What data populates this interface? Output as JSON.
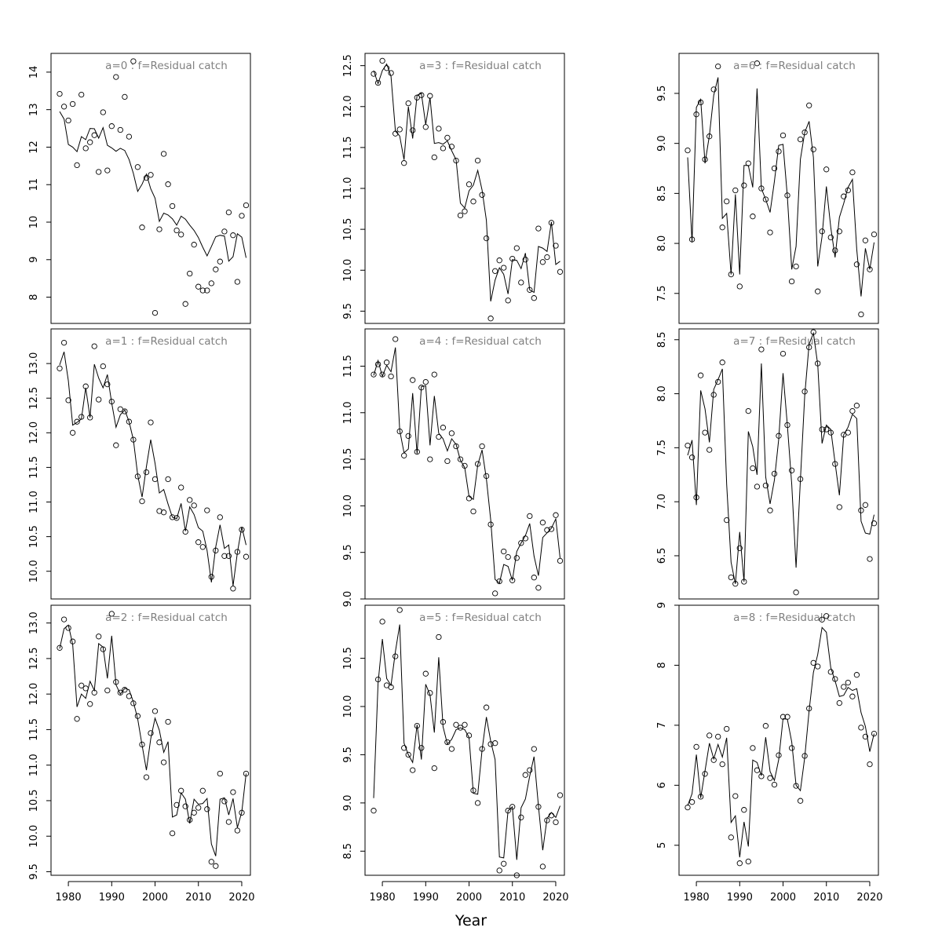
{
  "figure": {
    "xlabel": "Year"
  },
  "chart_data": [
    {
      "type": "scatter",
      "title": "a=0 : f=Residual catch",
      "x_start": 1978,
      "xlim": [
        1976,
        2022
      ],
      "ylim": [
        7.3,
        14.5
      ],
      "yticks": [
        8,
        9,
        10,
        11,
        12,
        13,
        14
      ],
      "series": [
        {
          "type": "points",
          "values": [
            13.42,
            13.08,
            12.71,
            13.15,
            11.52,
            13.4,
            11.97,
            12.13,
            12.32,
            11.34,
            12.93,
            11.38,
            12.56,
            13.87,
            12.46,
            13.34,
            12.28,
            14.29,
            11.47,
            9.86,
            11.18,
            11.26,
            7.58,
            9.81,
            11.82,
            11.01,
            10.43,
            9.78,
            9.67,
            7.82,
            8.63,
            9.4,
            8.28,
            8.18,
            8.18,
            8.37,
            8.74,
            8.95,
            9.75,
            10.26,
            9.65,
            8.41,
            10.17,
            10.45
          ]
        },
        {
          "type": "line",
          "values": [
            12.95,
            12.75,
            12.07,
            12.0,
            11.88,
            12.28,
            12.2,
            12.5,
            12.49,
            12.24,
            12.52,
            12.05,
            11.98,
            11.89,
            11.97,
            11.91,
            11.67,
            11.3,
            10.82,
            11.01,
            11.28,
            10.89,
            10.64,
            10.02,
            10.24,
            10.19,
            10.09,
            9.92,
            10.16,
            10.08,
            9.92,
            9.78,
            9.59,
            9.33,
            9.1,
            9.35,
            9.61,
            9.65,
            9.63,
            8.96,
            9.08,
            9.69,
            9.6,
            9.05
          ]
        }
      ]
    },
    {
      "type": "scatter",
      "title": "a=1 : f=Residual catch",
      "x_start": 1978,
      "xlim": [
        1976,
        2022
      ],
      "ylim": [
        9.6,
        13.5
      ],
      "yticks": [
        10.0,
        10.5,
        11.0,
        11.5,
        12.0,
        12.5,
        13.0
      ],
      "series": [
        {
          "type": "points",
          "values": [
            12.93,
            13.3,
            12.47,
            12.0,
            12.16,
            12.23,
            12.67,
            12.22,
            13.25,
            12.48,
            12.96,
            12.7,
            12.45,
            11.82,
            12.34,
            12.31,
            12.16,
            11.9,
            11.37,
            11.01,
            11.43,
            12.15,
            11.33,
            10.87,
            10.85,
            11.33,
            10.78,
            10.77,
            11.21,
            10.57,
            11.03,
            10.95,
            10.42,
            10.35,
            10.88,
            9.92,
            10.3,
            10.78,
            10.22,
            10.22,
            9.75,
            10.28,
            10.6,
            10.21
          ]
        },
        {
          "type": "line",
          "values": [
            12.98,
            13.17,
            12.75,
            12.11,
            12.15,
            12.2,
            12.65,
            12.22,
            12.99,
            12.79,
            12.65,
            12.84,
            12.43,
            12.08,
            12.26,
            12.33,
            12.16,
            11.9,
            11.39,
            11.07,
            11.51,
            11.9,
            11.56,
            11.13,
            11.18,
            10.97,
            10.78,
            10.76,
            10.98,
            10.58,
            10.93,
            10.82,
            10.63,
            10.58,
            10.3,
            9.84,
            10.35,
            10.67,
            10.33,
            10.38,
            9.79,
            10.27,
            10.64,
            10.38
          ]
        }
      ]
    },
    {
      "type": "scatter",
      "title": "a=2 : f=Residual catch",
      "x_start": 1978,
      "xlim": [
        1976,
        2022
      ],
      "ylim": [
        9.45,
        13.25
      ],
      "yticks": [
        9.5,
        10.0,
        10.5,
        11.0,
        11.5,
        12.0,
        12.5,
        13.0
      ],
      "series": [
        {
          "type": "points",
          "values": [
            12.65,
            13.05,
            12.93,
            12.74,
            11.65,
            12.12,
            12.08,
            11.86,
            12.02,
            12.81,
            12.63,
            12.05,
            13.13,
            12.17,
            12.02,
            12.06,
            11.97,
            11.87,
            11.69,
            11.29,
            10.83,
            11.45,
            11.76,
            11.32,
            11.04,
            11.61,
            10.04,
            10.44,
            10.64,
            10.42,
            10.23,
            10.33,
            10.4,
            10.64,
            10.38,
            9.64,
            9.58,
            10.88,
            10.49,
            10.2,
            10.62,
            10.08,
            10.33,
            10.88
          ]
        },
        {
          "type": "line",
          "values": [
            12.64,
            12.92,
            12.97,
            12.7,
            11.82,
            12.0,
            11.94,
            12.18,
            12.05,
            12.71,
            12.66,
            12.22,
            12.82,
            12.13,
            12.0,
            12.08,
            12.06,
            11.89,
            11.65,
            11.28,
            10.93,
            11.37,
            11.66,
            11.49,
            11.18,
            11.33,
            10.27,
            10.3,
            10.61,
            10.52,
            10.18,
            10.52,
            10.45,
            10.46,
            10.53,
            9.89,
            9.72,
            10.52,
            10.54,
            10.3,
            10.53,
            10.12,
            10.34,
            10.88
          ]
        }
      ]
    },
    {
      "type": "scatter",
      "title": "a=3 : f=Residual catch",
      "x_start": 1978,
      "xlim": [
        1976,
        2022
      ],
      "ylim": [
        9.35,
        12.65
      ],
      "yticks": [
        9.5,
        10.0,
        10.5,
        11.0,
        11.5,
        12.0,
        12.5
      ],
      "series": [
        {
          "type": "points",
          "values": [
            12.4,
            12.29,
            12.56,
            12.47,
            12.41,
            11.67,
            11.72,
            11.31,
            12.04,
            11.71,
            12.11,
            12.14,
            11.75,
            12.13,
            11.38,
            11.73,
            11.49,
            11.62,
            11.51,
            11.34,
            10.67,
            10.72,
            11.05,
            10.84,
            11.34,
            10.92,
            10.39,
            9.41,
            9.99,
            10.12,
            10.03,
            9.63,
            10.14,
            10.27,
            9.85,
            10.13,
            9.76,
            9.66,
            10.51,
            10.1,
            10.16,
            10.58,
            10.3,
            9.98
          ]
        },
        {
          "type": "line",
          "values": [
            12.44,
            12.28,
            12.44,
            12.52,
            12.37,
            11.7,
            11.64,
            11.35,
            12.0,
            11.61,
            12.14,
            12.16,
            11.78,
            12.11,
            11.55,
            11.56,
            11.54,
            11.58,
            11.46,
            11.35,
            10.82,
            10.76,
            10.97,
            11.04,
            11.22,
            10.98,
            10.61,
            9.62,
            9.88,
            10.03,
            9.95,
            9.71,
            10.13,
            10.12,
            10.02,
            10.21,
            9.76,
            9.73,
            10.29,
            10.27,
            10.23,
            10.59,
            10.07,
            10.11
          ]
        }
      ]
    },
    {
      "type": "scatter",
      "title": "a=4 : f=Residual catch",
      "x_start": 1978,
      "xlim": [
        1976,
        2022
      ],
      "ylim": [
        9.0,
        11.9
      ],
      "yticks": [
        9.0,
        9.5,
        10.0,
        10.5,
        11.0,
        11.5
      ],
      "series": [
        {
          "type": "points",
          "values": [
            11.41,
            11.52,
            11.41,
            11.54,
            11.39,
            11.79,
            10.8,
            10.54,
            10.75,
            11.35,
            10.58,
            11.27,
            11.33,
            10.5,
            11.41,
            10.74,
            10.84,
            10.48,
            10.78,
            10.64,
            10.5,
            10.43,
            10.08,
            9.94,
            10.45,
            10.64,
            10.32,
            9.8,
            9.06,
            9.19,
            9.51,
            9.45,
            9.2,
            9.44,
            9.6,
            9.65,
            9.89,
            9.23,
            9.12,
            9.82,
            9.74,
            9.75,
            9.9,
            9.41
          ]
        },
        {
          "type": "line",
          "values": [
            11.4,
            11.56,
            11.39,
            11.51,
            11.44,
            11.7,
            10.81,
            10.57,
            10.61,
            11.21,
            10.56,
            11.28,
            11.29,
            10.65,
            11.18,
            10.78,
            10.72,
            10.59,
            10.72,
            10.66,
            10.49,
            10.41,
            10.1,
            10.07,
            10.44,
            10.6,
            10.29,
            9.85,
            9.21,
            9.17,
            9.37,
            9.35,
            9.2,
            9.51,
            9.6,
            9.68,
            9.81,
            9.46,
            9.25,
            9.66,
            9.71,
            9.76,
            9.86,
            9.44
          ]
        }
      ]
    },
    {
      "type": "scatter",
      "title": "a=5 : f=Residual catch",
      "x_start": 1978,
      "xlim": [
        1976,
        2022
      ],
      "ylim": [
        8.25,
        11.05
      ],
      "yticks": [
        8.5,
        9.0,
        9.5,
        10.0,
        10.5
      ],
      "series": [
        {
          "type": "points",
          "values": [
            8.92,
            10.28,
            10.88,
            10.22,
            10.2,
            10.52,
            11.0,
            9.57,
            9.5,
            9.34,
            9.8,
            9.57,
            10.34,
            10.14,
            9.36,
            10.72,
            9.84,
            9.63,
            9.56,
            9.81,
            9.78,
            9.81,
            9.7,
            9.13,
            9.0,
            9.56,
            9.99,
            9.61,
            9.62,
            8.3,
            8.37,
            8.92,
            8.96,
            8.25,
            8.85,
            9.29,
            9.34,
            9.56,
            8.96,
            8.34,
            8.82,
            8.87,
            8.8,
            9.08
          ]
        },
        {
          "type": "line",
          "values": [
            9.05,
            10.24,
            10.7,
            10.29,
            10.22,
            10.57,
            10.85,
            9.62,
            9.5,
            9.42,
            9.81,
            9.45,
            10.23,
            10.12,
            9.73,
            10.51,
            9.79,
            9.61,
            9.66,
            9.76,
            9.78,
            9.76,
            9.68,
            9.1,
            9.09,
            9.55,
            9.89,
            9.64,
            9.45,
            8.44,
            8.43,
            8.92,
            8.96,
            8.41,
            8.95,
            9.04,
            9.28,
            9.48,
            8.97,
            8.51,
            8.84,
            8.9,
            8.85,
            8.97
          ]
        }
      ]
    },
    {
      "type": "scatter",
      "title": "a=6 : f=Residual catch",
      "x_start": 1978,
      "xlim": [
        1976,
        2022
      ],
      "ylim": [
        7.2,
        9.9
      ],
      "yticks": [
        7.5,
        8.0,
        8.5,
        9.0,
        9.5
      ],
      "series": [
        {
          "type": "points",
          "values": [
            8.93,
            8.04,
            9.29,
            9.41,
            8.84,
            9.07,
            9.54,
            9.77,
            8.16,
            8.42,
            7.69,
            8.53,
            7.57,
            8.58,
            8.8,
            8.27,
            9.8,
            8.55,
            8.44,
            8.11,
            8.75,
            8.92,
            9.08,
            8.48,
            7.62,
            7.77,
            9.04,
            9.11,
            9.38,
            8.94,
            7.52,
            8.12,
            8.74,
            8.06,
            7.93,
            8.12,
            8.47,
            8.53,
            8.71,
            7.79,
            7.29,
            8.03,
            7.74,
            8.09
          ]
        },
        {
          "type": "line",
          "values": [
            8.86,
            8.01,
            9.36,
            9.44,
            8.8,
            9.08,
            9.48,
            9.66,
            8.25,
            8.3,
            7.69,
            8.49,
            7.69,
            8.78,
            8.78,
            8.56,
            9.55,
            8.55,
            8.44,
            8.31,
            8.62,
            8.98,
            8.99,
            8.47,
            7.74,
            7.97,
            8.84,
            9.11,
            9.22,
            8.86,
            7.77,
            8.07,
            8.57,
            8.16,
            7.86,
            8.26,
            8.4,
            8.56,
            8.64,
            7.94,
            7.47,
            7.95,
            7.74,
            8.01
          ]
        }
      ]
    },
    {
      "type": "scatter",
      "title": "a=7 : f=Residual catch",
      "x_start": 1978,
      "xlim": [
        1976,
        2022
      ],
      "ylim": [
        6.1,
        8.6
      ],
      "yticks": [
        6.5,
        7.0,
        7.5,
        8.0,
        8.5
      ],
      "series": [
        {
          "type": "points",
          "values": [
            7.52,
            7.41,
            7.04,
            8.17,
            7.64,
            7.48,
            7.99,
            8.11,
            8.29,
            6.83,
            6.3,
            6.24,
            6.57,
            6.26,
            7.84,
            7.31,
            7.14,
            8.41,
            7.15,
            6.92,
            7.26,
            7.61,
            8.37,
            7.71,
            7.29,
            6.16,
            7.21,
            8.02,
            8.43,
            8.57,
            8.28,
            7.67,
            7.67,
            7.64,
            7.35,
            6.95,
            7.62,
            7.64,
            7.84,
            7.89,
            6.92,
            6.97,
            6.47,
            6.8
          ]
        },
        {
          "type": "line",
          "values": [
            7.43,
            7.57,
            6.97,
            8.03,
            7.86,
            7.55,
            8.04,
            8.13,
            8.23,
            7.16,
            6.44,
            6.24,
            6.72,
            6.26,
            7.65,
            7.51,
            7.25,
            8.28,
            7.23,
            6.98,
            7.2,
            7.58,
            8.19,
            7.71,
            7.16,
            6.39,
            7.2,
            7.98,
            8.46,
            8.56,
            8.27,
            7.54,
            7.71,
            7.67,
            7.36,
            7.06,
            7.62,
            7.69,
            7.81,
            7.77,
            6.82,
            6.71,
            6.7,
            6.88
          ]
        }
      ]
    },
    {
      "type": "scatter",
      "title": "a=8 : f=Residual catch",
      "x_start": 1978,
      "xlim": [
        1976,
        2022
      ],
      "ylim": [
        4.5,
        9.0
      ],
      "yticks": [
        5,
        6,
        7,
        8,
        9
      ],
      "series": [
        {
          "type": "points",
          "values": [
            5.63,
            5.72,
            6.64,
            5.81,
            6.19,
            6.83,
            6.42,
            6.81,
            6.35,
            6.94,
            5.13,
            5.82,
            4.7,
            5.59,
            4.73,
            6.62,
            6.25,
            6.15,
            6.99,
            6.12,
            6.01,
            6.5,
            7.14,
            7.14,
            6.62,
            5.99,
            5.74,
            6.49,
            7.28,
            8.04,
            7.98,
            8.76,
            8.82,
            7.89,
            7.77,
            7.37,
            7.64,
            7.71,
            7.48,
            7.84,
            6.96,
            6.81,
            6.35,
            6.86
          ]
        },
        {
          "type": "line",
          "values": [
            5.66,
            5.86,
            6.51,
            5.79,
            6.24,
            6.7,
            6.44,
            6.68,
            6.47,
            6.79,
            5.38,
            5.49,
            4.8,
            5.39,
            4.98,
            6.42,
            6.38,
            6.16,
            6.8,
            6.23,
            6.08,
            6.43,
            7.11,
            7.1,
            6.72,
            6.0,
            5.91,
            6.46,
            7.24,
            7.88,
            8.18,
            8.63,
            8.55,
            7.96,
            7.74,
            7.48,
            7.5,
            7.63,
            7.58,
            7.61,
            7.21,
            6.98,
            6.56,
            6.86
          ]
        }
      ]
    }
  ]
}
